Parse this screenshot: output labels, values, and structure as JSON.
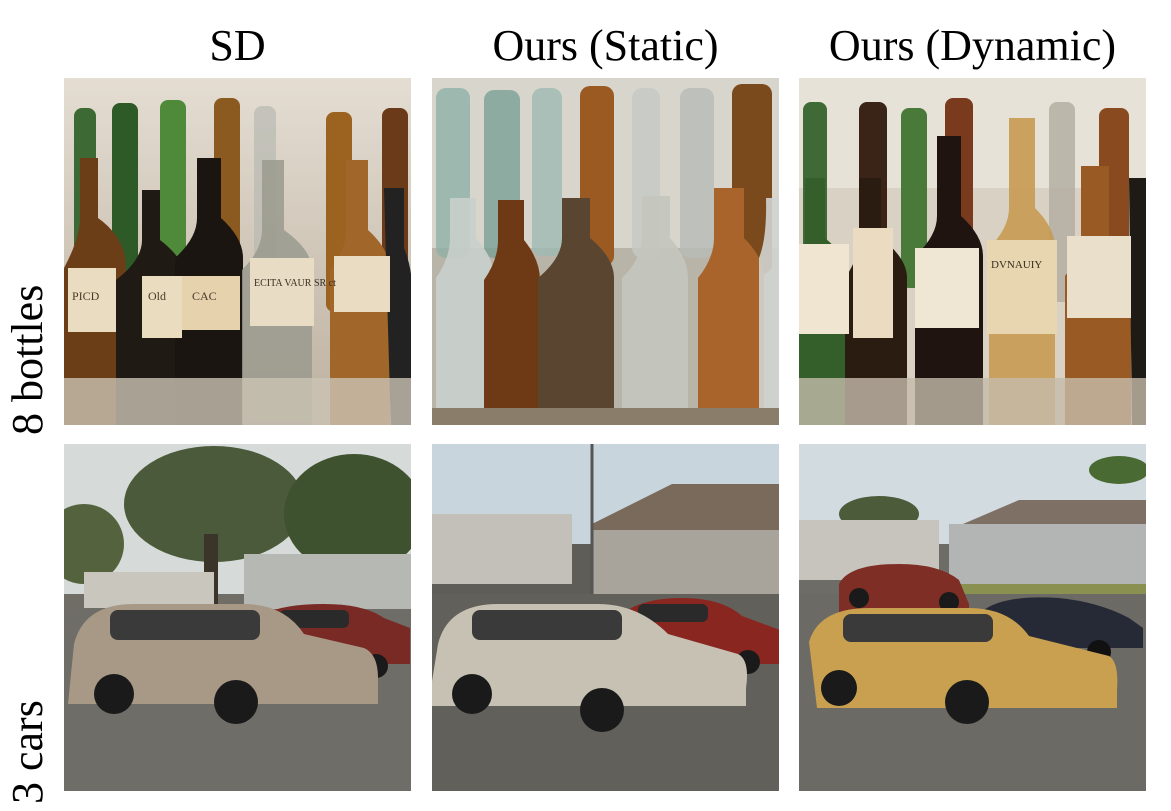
{
  "columns": [
    {
      "title": "SD"
    },
    {
      "title": "Ours (Static)"
    },
    {
      "title": "Ours (Dynamic)"
    }
  ],
  "rows": [
    {
      "label": "8 bottles"
    },
    {
      "label": "3 cars"
    }
  ],
  "image_labels": {
    "sd_bottle_1": "PICD",
    "sd_bottle_2": "Old",
    "sd_bottle_3": "CAC",
    "sd_bottle_4": "ECITA VAUR SR ct",
    "dyn_bottle_1": "DVNAUIY"
  }
}
